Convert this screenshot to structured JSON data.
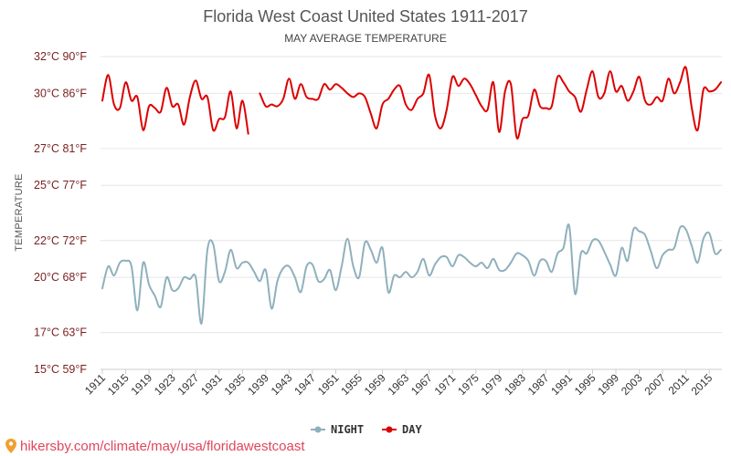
{
  "chart_data": {
    "type": "line",
    "title": "Florida West Coast United States 1911-2017",
    "subtitle": "MAY AVERAGE TEMPERATURE",
    "ylabel": "TEMPERATURE",
    "ylim": [
      15,
      32
    ],
    "y_ticks": [
      {
        "value": 32,
        "label": "32°C 90°F"
      },
      {
        "value": 30,
        "label": "30°C 86°F"
      },
      {
        "value": 27,
        "label": "27°C 81°F"
      },
      {
        "value": 25,
        "label": "25°C 77°F"
      },
      {
        "value": 22,
        "label": "22°C 72°F"
      },
      {
        "value": 20,
        "label": "20°C 68°F"
      },
      {
        "value": 17,
        "label": "17°C 63°F"
      },
      {
        "value": 15,
        "label": "15°C 59°F"
      }
    ],
    "xlim": [
      1911,
      2017
    ],
    "x_ticks": [
      "1911",
      "1915",
      "1919",
      "1923",
      "1927",
      "1931",
      "1935",
      "1939",
      "1943",
      "1947",
      "1951",
      "1955",
      "1959",
      "1963",
      "1967",
      "1971",
      "1975",
      "1979",
      "1983",
      "1987",
      "1991",
      "1995",
      "1999",
      "2003",
      "2007",
      "2011",
      "2015"
    ],
    "grid": true,
    "legend_position": "bottom-center",
    "series": [
      {
        "name": "NIGHT",
        "color": "#8fb0bd",
        "x": [
          1911,
          1912,
          1913,
          1914,
          1915,
          1916,
          1917,
          1918,
          1919,
          1920,
          1921,
          1922,
          1923,
          1924,
          1925,
          1926,
          1927,
          1928,
          1929,
          1930,
          1931,
          1932,
          1933,
          1934,
          1935,
          1936,
          1937,
          1938,
          1939,
          1940,
          1941,
          1942,
          1943,
          1944,
          1945,
          1946,
          1947,
          1948,
          1949,
          1950,
          1951,
          1952,
          1953,
          1954,
          1955,
          1956,
          1957,
          1958,
          1959,
          1960,
          1961,
          1962,
          1963,
          1964,
          1965,
          1966,
          1967,
          1968,
          1969,
          1970,
          1971,
          1972,
          1973,
          1974,
          1975,
          1976,
          1977,
          1978,
          1979,
          1980,
          1981,
          1982,
          1983,
          1984,
          1985,
          1986,
          1987,
          1988,
          1989,
          1990,
          1991,
          1992,
          1993,
          1994,
          1995,
          1996,
          1997,
          1998,
          1999,
          2000,
          2001,
          2002,
          2003,
          2004,
          2005,
          2006,
          2007,
          2008,
          2009,
          2010,
          2011,
          2012,
          2013,
          2014,
          2015,
          2016,
          2017
        ],
        "values": [
          19.4,
          20.6,
          20.1,
          20.8,
          20.9,
          20.6,
          18.2,
          20.8,
          19.6,
          19.0,
          18.4,
          20.0,
          19.3,
          19.4,
          20.0,
          19.9,
          20.0,
          17.5,
          21.5,
          21.8,
          19.8,
          20.3,
          21.5,
          20.5,
          20.8,
          20.8,
          20.3,
          19.8,
          20.4,
          18.3,
          19.8,
          20.5,
          20.6,
          20.0,
          19.2,
          20.6,
          20.7,
          19.8,
          19.9,
          20.4,
          19.3,
          20.6,
          22.1,
          20.6,
          20.0,
          21.9,
          21.5,
          20.8,
          21.6,
          19.2,
          20.1,
          20.0,
          20.3,
          20.0,
          20.3,
          21.0,
          20.1,
          20.7,
          21.1,
          21.1,
          20.6,
          21.2,
          21.1,
          20.8,
          20.6,
          20.8,
          20.5,
          21.0,
          20.4,
          20.4,
          20.8,
          21.3,
          21.2,
          20.9,
          20.1,
          20.9,
          20.9,
          20.3,
          21.3,
          21.6,
          22.8,
          19.1,
          21.3,
          21.3,
          22.0,
          22.0,
          21.4,
          20.7,
          20.1,
          21.6,
          20.9,
          22.6,
          22.5,
          22.3,
          21.4,
          20.5,
          21.2,
          21.5,
          21.6,
          22.7,
          22.6,
          21.7,
          20.8,
          22.1,
          22.4,
          21.3,
          21.5
        ]
      },
      {
        "name": "DAY",
        "color": "#dd0000",
        "x": [
          1911,
          1912,
          1913,
          1914,
          1915,
          1916,
          1917,
          1918,
          1919,
          1920,
          1921,
          1922,
          1923,
          1924,
          1925,
          1926,
          1927,
          1928,
          1929,
          1930,
          1931,
          1932,
          1933,
          1934,
          1935,
          1936,
          1937,
          1938,
          1939,
          1940,
          1941,
          1942,
          1943,
          1944,
          1945,
          1946,
          1947,
          1948,
          1949,
          1950,
          1951,
          1952,
          1953,
          1954,
          1955,
          1956,
          1957,
          1958,
          1959,
          1960,
          1961,
          1962,
          1963,
          1964,
          1965,
          1966,
          1967,
          1968,
          1969,
          1970,
          1971,
          1972,
          1973,
          1974,
          1975,
          1976,
          1977,
          1978,
          1979,
          1980,
          1981,
          1982,
          1983,
          1984,
          1985,
          1986,
          1987,
          1988,
          1989,
          1990,
          1991,
          1992,
          1993,
          1994,
          1995,
          1996,
          1997,
          1998,
          1999,
          2000,
          2001,
          2002,
          2003,
          2004,
          2005,
          2006,
          2007,
          2008,
          2009,
          2010,
          2011,
          2012,
          2013,
          2014,
          2015,
          2016,
          2017
        ],
        "values": [
          29.6,
          31.0,
          29.4,
          29.2,
          30.6,
          29.6,
          29.8,
          28.0,
          29.3,
          29.2,
          29.0,
          30.3,
          29.3,
          29.4,
          28.3,
          29.8,
          30.7,
          29.7,
          29.8,
          28.0,
          28.6,
          28.7,
          30.1,
          28.1,
          29.6,
          27.8,
          null,
          30.0,
          29.3,
          29.4,
          29.3,
          29.7,
          30.8,
          29.7,
          30.5,
          29.8,
          29.7,
          29.7,
          30.5,
          30.2,
          30.5,
          30.3,
          30.0,
          29.8,
          30.0,
          29.8,
          28.9,
          28.1,
          29.4,
          29.7,
          30.2,
          30.4,
          29.4,
          29.1,
          29.7,
          30.0,
          31.0,
          28.8,
          28.1,
          29.1,
          30.9,
          30.4,
          30.8,
          30.5,
          29.9,
          29.3,
          29.1,
          30.6,
          27.9,
          30.1,
          30.5,
          27.6,
          28.6,
          28.8,
          30.2,
          29.3,
          29.2,
          29.3,
          30.9,
          30.6,
          30.1,
          29.8,
          29.0,
          30.2,
          31.2,
          29.8,
          30.0,
          31.2,
          30.1,
          30.4,
          29.6,
          30.1,
          30.9,
          29.6,
          29.4,
          29.8,
          29.6,
          30.8,
          30.0,
          30.6,
          31.4,
          29.2,
          28.0,
          30.2,
          30.1,
          30.2,
          30.6
        ]
      }
    ]
  },
  "source_text": "hikersby.com/climate/may/usa/floridawestcoast"
}
